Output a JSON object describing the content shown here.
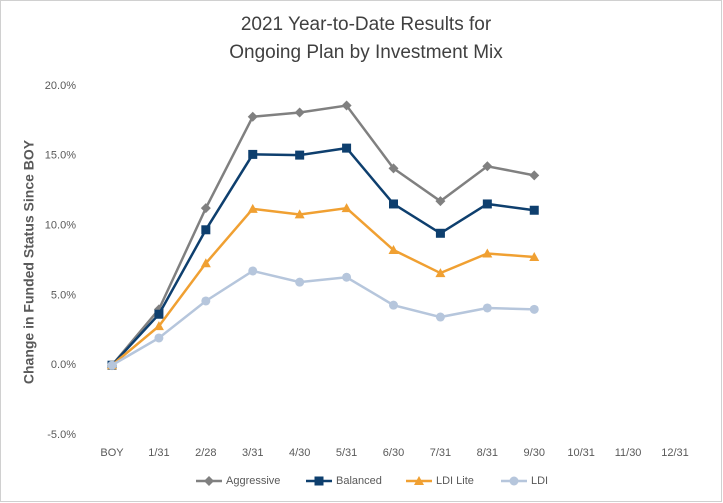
{
  "chart_data": {
    "type": "line",
    "title": [
      "2021 Year-to-Date Results for",
      "Ongoing Plan by Investment Mix"
    ],
    "y_label": "Change in Funded Status Since BOY",
    "categories": [
      "BOY",
      "1/31",
      "2/28",
      "3/31",
      "4/30",
      "5/31",
      "6/30",
      "7/31",
      "8/31",
      "9/30",
      "10/31",
      "11/30",
      "12/31"
    ],
    "series": [
      {
        "name": "Aggressive",
        "color": "#808080",
        "marker": "diamond",
        "values": [
          0,
          4.0,
          11.25,
          17.8,
          18.1,
          18.6,
          14.1,
          11.75,
          14.25,
          13.6,
          null,
          null,
          null
        ]
      },
      {
        "name": "Balanced",
        "color": "#0e3f6e",
        "marker": "square",
        "values": [
          0,
          3.65,
          9.7,
          15.1,
          15.05,
          15.55,
          11.55,
          9.45,
          11.55,
          11.1,
          null,
          null,
          null
        ]
      },
      {
        "name": "LDI Lite",
        "color": "#f0a032",
        "marker": "triangle",
        "values": [
          0,
          2.8,
          7.3,
          11.2,
          10.8,
          11.25,
          8.25,
          6.6,
          8.0,
          7.75,
          null,
          null,
          null
        ]
      },
      {
        "name": "LDI",
        "color": "#b6c6dc",
        "marker": "circle",
        "values": [
          0,
          1.95,
          4.6,
          6.75,
          5.95,
          6.3,
          4.3,
          3.45,
          4.1,
          4.0,
          null,
          null,
          null
        ]
      }
    ],
    "ylim": [
      -5,
      20
    ],
    "yticks": [
      {
        "value": -5,
        "label": "-5.0%"
      },
      {
        "value": 0,
        "label": "0.0%"
      },
      {
        "value": 5,
        "label": "5.0%"
      },
      {
        "value": 10,
        "label": "10.0%"
      },
      {
        "value": 15,
        "label": "15.0%"
      },
      {
        "value": 20,
        "label": "20.0%"
      }
    ],
    "grid": false,
    "legend": "bottom"
  }
}
